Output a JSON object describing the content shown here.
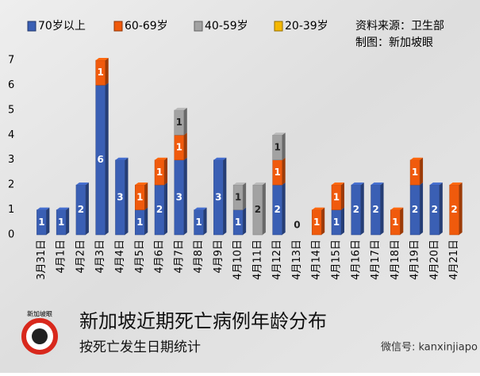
{
  "chart_data": {
    "type": "bar",
    "stacked": true,
    "title": "新加坡近期死亡病例年龄分布",
    "subtitle": "按死亡发生日期统计",
    "source": "资料来源：卫生部",
    "credit": "制图：新加坡眼",
    "logo_text": "新加坡眼",
    "watermark": "微信号: kanxinjiapo",
    "categories": [
      "3月31日",
      "4月1日",
      "4月2日",
      "4月3日",
      "4月4日",
      "4月5日",
      "4月6日",
      "4月7日",
      "4月8日",
      "4月9日",
      "4月10日",
      "4月11日",
      "4月12日",
      "4月13日",
      "4月14日",
      "4月15日",
      "4月16日",
      "4月17日",
      "4月18日",
      "4月19日",
      "4月20日",
      "4月21日"
    ],
    "series": [
      {
        "name": "70岁以上",
        "color": "#3a5fb4",
        "values": [
          1,
          1,
          2,
          6,
          3,
          1,
          2,
          3,
          1,
          3,
          1,
          null,
          2,
          0,
          null,
          1,
          2,
          2,
          null,
          2,
          2,
          null
        ]
      },
      {
        "name": "60-69岁",
        "color": "#f05a0c",
        "values": [
          null,
          null,
          null,
          1,
          null,
          1,
          1,
          1,
          null,
          null,
          null,
          null,
          1,
          null,
          1,
          1,
          null,
          null,
          1,
          1,
          null,
          2
        ]
      },
      {
        "name": "40-59岁",
        "color": "#a2a2a2",
        "values": [
          null,
          null,
          null,
          null,
          null,
          null,
          null,
          1,
          null,
          null,
          1,
          2,
          1,
          null,
          null,
          null,
          null,
          null,
          null,
          null,
          null,
          null
        ]
      },
      {
        "name": "20-39岁",
        "color": "#f5b800",
        "values": [
          null,
          null,
          null,
          null,
          null,
          null,
          null,
          null,
          null,
          null,
          null,
          null,
          null,
          null,
          null,
          null,
          null,
          null,
          null,
          null,
          null,
          null
        ]
      }
    ],
    "ylim": [
      0,
      7
    ],
    "yticks": [
      0,
      1,
      2,
      3,
      4,
      5,
      6,
      7
    ],
    "grid": false
  }
}
